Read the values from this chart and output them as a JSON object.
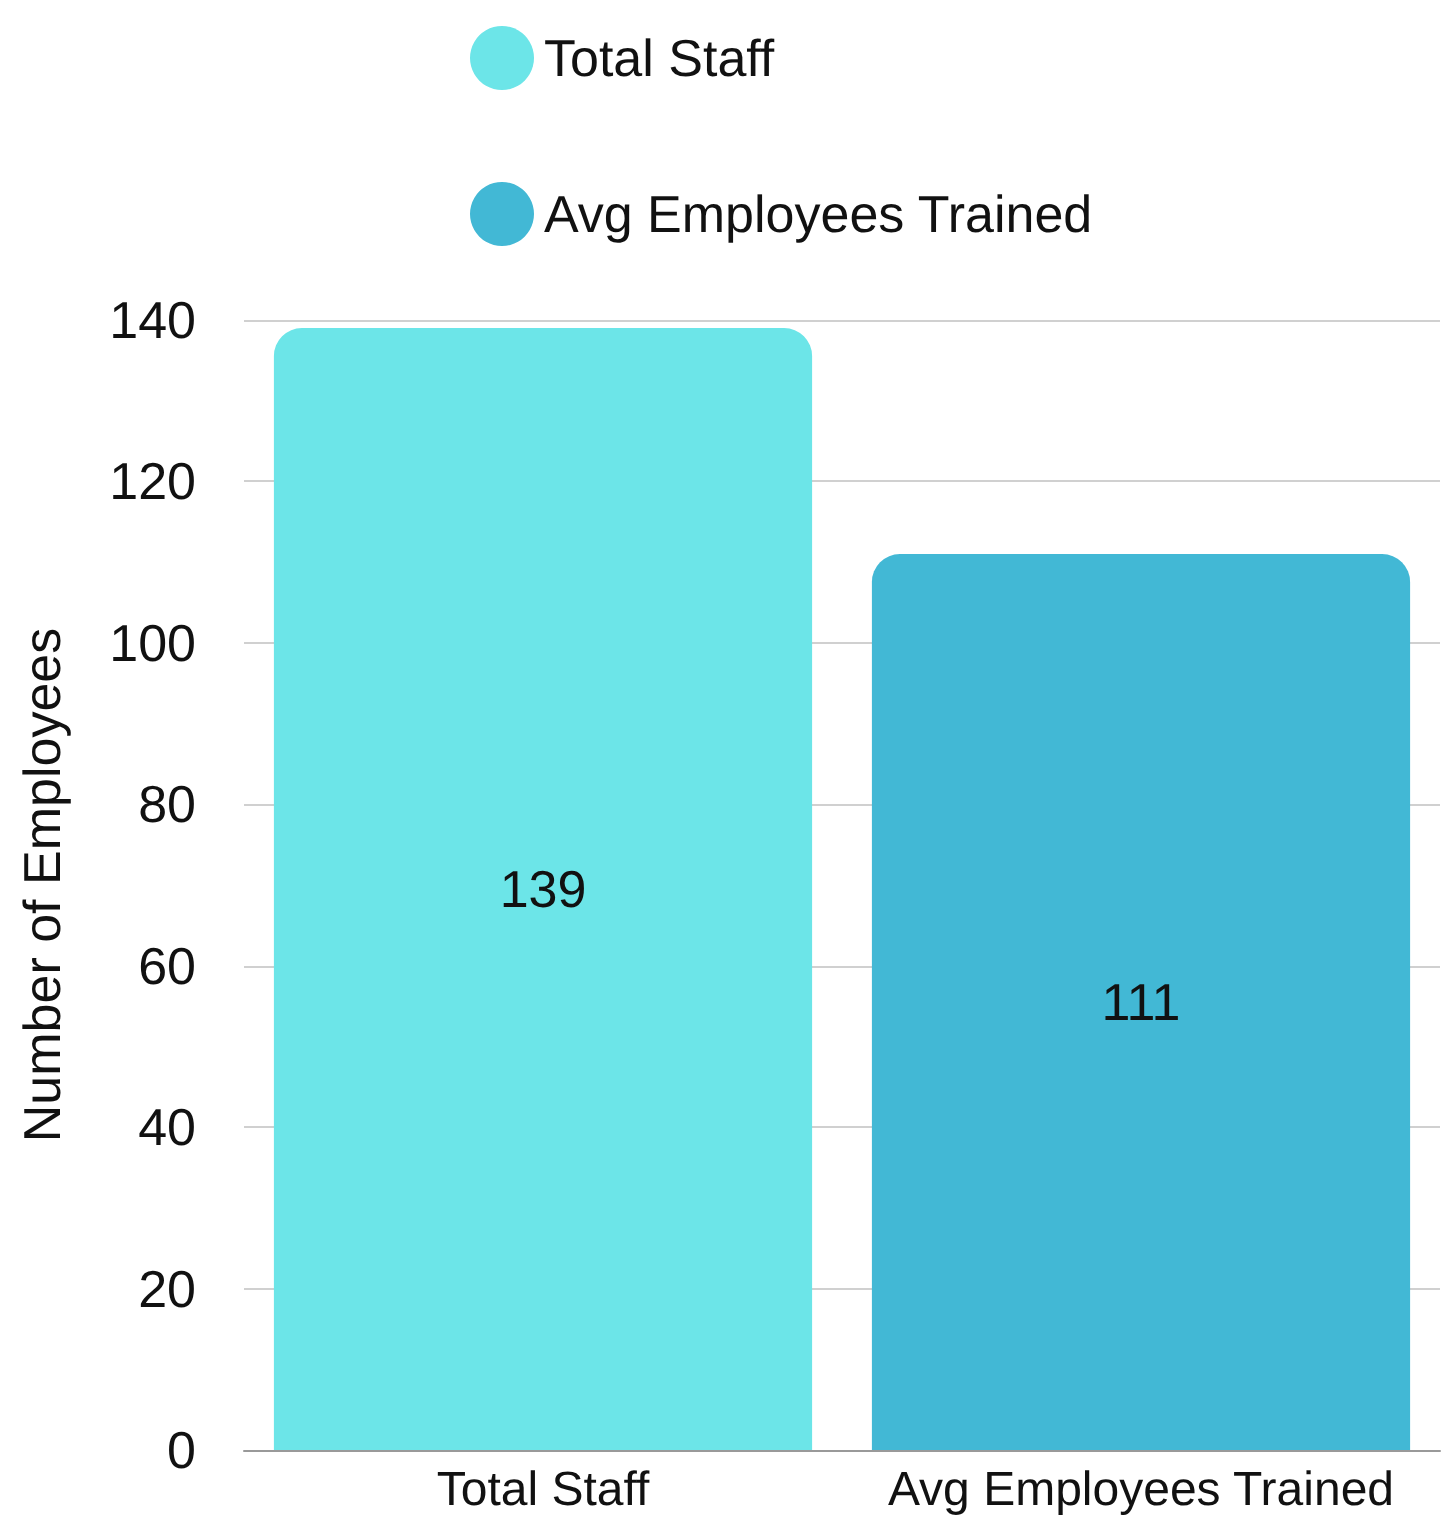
{
  "chart_data": {
    "type": "bar",
    "ylabel": "Number of Employees",
    "categories": [
      "Total Staff",
      "Avg Employees Trained"
    ],
    "series": [
      {
        "name": "Total Staff",
        "color": "#6ce5e8",
        "values": [
          139,
          null
        ]
      },
      {
        "name": "Avg Employees Trained",
        "color": "#42b8d5",
        "values": [
          null,
          111
        ]
      }
    ],
    "ylim": [
      0,
      140
    ],
    "yticks": [
      0,
      20,
      40,
      60,
      80,
      100,
      120,
      140
    ],
    "grid": "y",
    "legend": "top",
    "data_labels": true
  }
}
